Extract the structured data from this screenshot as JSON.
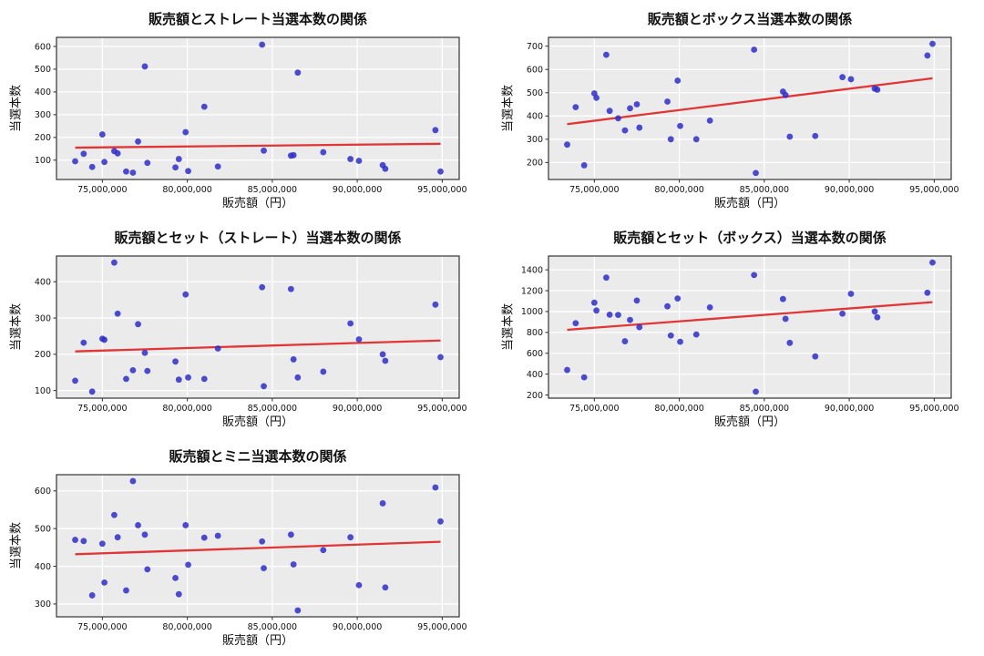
{
  "figure": {
    "background": "#ffffff",
    "plot_bg": "#ebebeb",
    "grid_color": "#ffffff",
    "point_color": "#2d2dcc",
    "point_opacity": 0.85,
    "trend_color": "#e02626",
    "frame_color": "#2b2b2b",
    "text_color": "#111111"
  },
  "chart_data": [
    {
      "type": "scatter",
      "title": "販売額とストレート当選本数の関係",
      "xlabel": "販売額（円）",
      "ylabel": "当選本数",
      "xlim": [
        72300000,
        96000000
      ],
      "ylim": [
        15,
        640
      ],
      "xticks": [
        {
          "value": 75000000,
          "label": "75,000,000"
        },
        {
          "value": 80000000,
          "label": "80,000,000"
        },
        {
          "value": 85000000,
          "label": "85,000,000"
        },
        {
          "value": 90000000,
          "label": "90,000,000"
        },
        {
          "value": 95000000,
          "label": "95,000,000"
        }
      ],
      "yticks": [
        100,
        200,
        300,
        400,
        500,
        600
      ],
      "grid": true,
      "legend": null,
      "points": [
        [
          73400000,
          95
        ],
        [
          73900000,
          128
        ],
        [
          74400000,
          70
        ],
        [
          75000000,
          213
        ],
        [
          75120000,
          92
        ],
        [
          75700000,
          140
        ],
        [
          75900000,
          130
        ],
        [
          76400000,
          50
        ],
        [
          76800000,
          45
        ],
        [
          77100000,
          182
        ],
        [
          77500000,
          512
        ],
        [
          77650000,
          88
        ],
        [
          79300000,
          68
        ],
        [
          79500000,
          105
        ],
        [
          79900000,
          223
        ],
        [
          80050000,
          52
        ],
        [
          81000000,
          335
        ],
        [
          81800000,
          72
        ],
        [
          84400000,
          608
        ],
        [
          84500000,
          142
        ],
        [
          86100000,
          120
        ],
        [
          86250000,
          122
        ],
        [
          86500000,
          485
        ],
        [
          88000000,
          135
        ],
        [
          89600000,
          105
        ],
        [
          90100000,
          97
        ],
        [
          91500000,
          78
        ],
        [
          91650000,
          62
        ],
        [
          94600000,
          232
        ],
        [
          94900000,
          50
        ]
      ],
      "trend": {
        "x": [
          73400000,
          94900000
        ],
        "y": [
          155,
          172
        ]
      }
    },
    {
      "type": "scatter",
      "title": "販売額とボックス当選本数の関係",
      "xlabel": "販売額（円）",
      "ylabel": "当選本数",
      "xlim": [
        72300000,
        96000000
      ],
      "ylim": [
        127,
        738
      ],
      "xticks": [
        {
          "value": 75000000,
          "label": "75,000,000"
        },
        {
          "value": 80000000,
          "label": "80,000,000"
        },
        {
          "value": 85000000,
          "label": "85,000,000"
        },
        {
          "value": 90000000,
          "label": "90,000,000"
        },
        {
          "value": 95000000,
          "label": "95,000,000"
        }
      ],
      "yticks": [
        200,
        300,
        400,
        500,
        600,
        700
      ],
      "grid": true,
      "legend": null,
      "points": [
        [
          73400000,
          277
        ],
        [
          73900000,
          438
        ],
        [
          74400000,
          188
        ],
        [
          75000000,
          497
        ],
        [
          75120000,
          478
        ],
        [
          75700000,
          663
        ],
        [
          75900000,
          422
        ],
        [
          76400000,
          390
        ],
        [
          76800000,
          338
        ],
        [
          77100000,
          433
        ],
        [
          77500000,
          450
        ],
        [
          77650000,
          350
        ],
        [
          79300000,
          462
        ],
        [
          79500000,
          300
        ],
        [
          79900000,
          552
        ],
        [
          80050000,
          357
        ],
        [
          81000000,
          300
        ],
        [
          81800000,
          380
        ],
        [
          84400000,
          685
        ],
        [
          84500000,
          155
        ],
        [
          86100000,
          505
        ],
        [
          86250000,
          490
        ],
        [
          86500000,
          311
        ],
        [
          88000000,
          314
        ],
        [
          89600000,
          567
        ],
        [
          90100000,
          558
        ],
        [
          91500000,
          518
        ],
        [
          91650000,
          513
        ],
        [
          94600000,
          660
        ],
        [
          94900000,
          710
        ]
      ],
      "trend": {
        "x": [
          73400000,
          94900000
        ],
        "y": [
          365,
          562
        ]
      }
    },
    {
      "type": "scatter",
      "title": "販売額とセット（ストレート）当選本数の関係",
      "xlabel": "販売額（円）",
      "ylabel": "当選本数",
      "xlim": [
        72300000,
        96000000
      ],
      "ylim": [
        79,
        471
      ],
      "xticks": [
        {
          "value": 75000000,
          "label": "75,000,000"
        },
        {
          "value": 80000000,
          "label": "80,000,000"
        },
        {
          "value": 85000000,
          "label": "85,000,000"
        },
        {
          "value": 90000000,
          "label": "90,000,000"
        },
        {
          "value": 95000000,
          "label": "95,000,000"
        }
      ],
      "yticks": [
        100,
        200,
        300,
        400
      ],
      "grid": true,
      "legend": null,
      "points": [
        [
          73400000,
          127
        ],
        [
          73900000,
          232
        ],
        [
          74400000,
          97
        ],
        [
          75000000,
          243
        ],
        [
          75120000,
          240
        ],
        [
          75700000,
          453
        ],
        [
          75900000,
          312
        ],
        [
          76400000,
          132
        ],
        [
          76800000,
          156
        ],
        [
          77100000,
          283
        ],
        [
          77500000,
          204
        ],
        [
          77650000,
          154
        ],
        [
          79300000,
          180
        ],
        [
          79500000,
          130
        ],
        [
          79900000,
          365
        ],
        [
          80050000,
          136
        ],
        [
          81000000,
          132
        ],
        [
          81800000,
          216
        ],
        [
          84400000,
          385
        ],
        [
          84500000,
          112
        ],
        [
          86100000,
          380
        ],
        [
          86250000,
          186
        ],
        [
          86500000,
          136
        ],
        [
          88000000,
          152
        ],
        [
          89600000,
          285
        ],
        [
          90100000,
          241
        ],
        [
          91500000,
          200
        ],
        [
          91650000,
          182
        ],
        [
          94600000,
          337
        ],
        [
          94900000,
          192
        ]
      ],
      "trend": {
        "x": [
          73400000,
          94900000
        ],
        "y": [
          208,
          238
        ]
      }
    },
    {
      "type": "scatter",
      "title": "販売額とセット（ボックス）当選本数の関係",
      "xlabel": "販売額（円）",
      "ylabel": "当選本数",
      "xlim": [
        72300000,
        96000000
      ],
      "ylim": [
        170,
        1532
      ],
      "xticks": [
        {
          "value": 75000000,
          "label": "75,000,000"
        },
        {
          "value": 80000000,
          "label": "80,000,000"
        },
        {
          "value": 85000000,
          "label": "85,000,000"
        },
        {
          "value": 90000000,
          "label": "90,000,000"
        },
        {
          "value": 95000000,
          "label": "95,000,000"
        }
      ],
      "yticks": [
        200,
        400,
        600,
        800,
        1000,
        1200,
        1400
      ],
      "grid": true,
      "legend": null,
      "points": [
        [
          73400000,
          440
        ],
        [
          73900000,
          888
        ],
        [
          74400000,
          370
        ],
        [
          75000000,
          1085
        ],
        [
          75120000,
          1010
        ],
        [
          75700000,
          1325
        ],
        [
          75900000,
          970
        ],
        [
          76400000,
          968
        ],
        [
          76800000,
          715
        ],
        [
          77100000,
          920
        ],
        [
          77500000,
          1105
        ],
        [
          77650000,
          850
        ],
        [
          79300000,
          1050
        ],
        [
          79500000,
          770
        ],
        [
          79900000,
          1125
        ],
        [
          80050000,
          710
        ],
        [
          81000000,
          780
        ],
        [
          81800000,
          1040
        ],
        [
          84400000,
          1350
        ],
        [
          84500000,
          232
        ],
        [
          86100000,
          1120
        ],
        [
          86250000,
          930
        ],
        [
          86500000,
          700
        ],
        [
          88000000,
          570
        ],
        [
          89600000,
          980
        ],
        [
          90100000,
          1170
        ],
        [
          91500000,
          1000
        ],
        [
          91650000,
          945
        ],
        [
          94600000,
          1180
        ],
        [
          94900000,
          1470
        ]
      ],
      "trend": {
        "x": [
          73400000,
          94900000
        ],
        "y": [
          825,
          1090
        ]
      }
    },
    {
      "type": "scatter",
      "title": "販売額とミニ当選本数の関係",
      "xlabel": "販売額（円）",
      "ylabel": "当選本数",
      "xlim": [
        72300000,
        96000000
      ],
      "ylim": [
        266,
        643
      ],
      "xticks": [
        {
          "value": 75000000,
          "label": "75,000,000"
        },
        {
          "value": 80000000,
          "label": "80,000,000"
        },
        {
          "value": 85000000,
          "label": "85,000,000"
        },
        {
          "value": 90000000,
          "label": "90,000,000"
        },
        {
          "value": 95000000,
          "label": "95,000,000"
        }
      ],
      "yticks": [
        300,
        400,
        500,
        600
      ],
      "grid": true,
      "legend": null,
      "points": [
        [
          73400000,
          470
        ],
        [
          73900000,
          467
        ],
        [
          74400000,
          323
        ],
        [
          75000000,
          460
        ],
        [
          75120000,
          357
        ],
        [
          75700000,
          536
        ],
        [
          75900000,
          477
        ],
        [
          76400000,
          336
        ],
        [
          76800000,
          626
        ],
        [
          77100000,
          509
        ],
        [
          77500000,
          484
        ],
        [
          77650000,
          392
        ],
        [
          79300000,
          369
        ],
        [
          79500000,
          326
        ],
        [
          79900000,
          509
        ],
        [
          80050000,
          404
        ],
        [
          81000000,
          476
        ],
        [
          81800000,
          481
        ],
        [
          84400000,
          466
        ],
        [
          84500000,
          395
        ],
        [
          86100000,
          484
        ],
        [
          86250000,
          405
        ],
        [
          86500000,
          283
        ],
        [
          88000000,
          443
        ],
        [
          89600000,
          477
        ],
        [
          90100000,
          350
        ],
        [
          91500000,
          567
        ],
        [
          91650000,
          344
        ],
        [
          94600000,
          609
        ],
        [
          94900000,
          519
        ]
      ],
      "trend": {
        "x": [
          73400000,
          94900000
        ],
        "y": [
          432,
          465
        ]
      }
    }
  ]
}
